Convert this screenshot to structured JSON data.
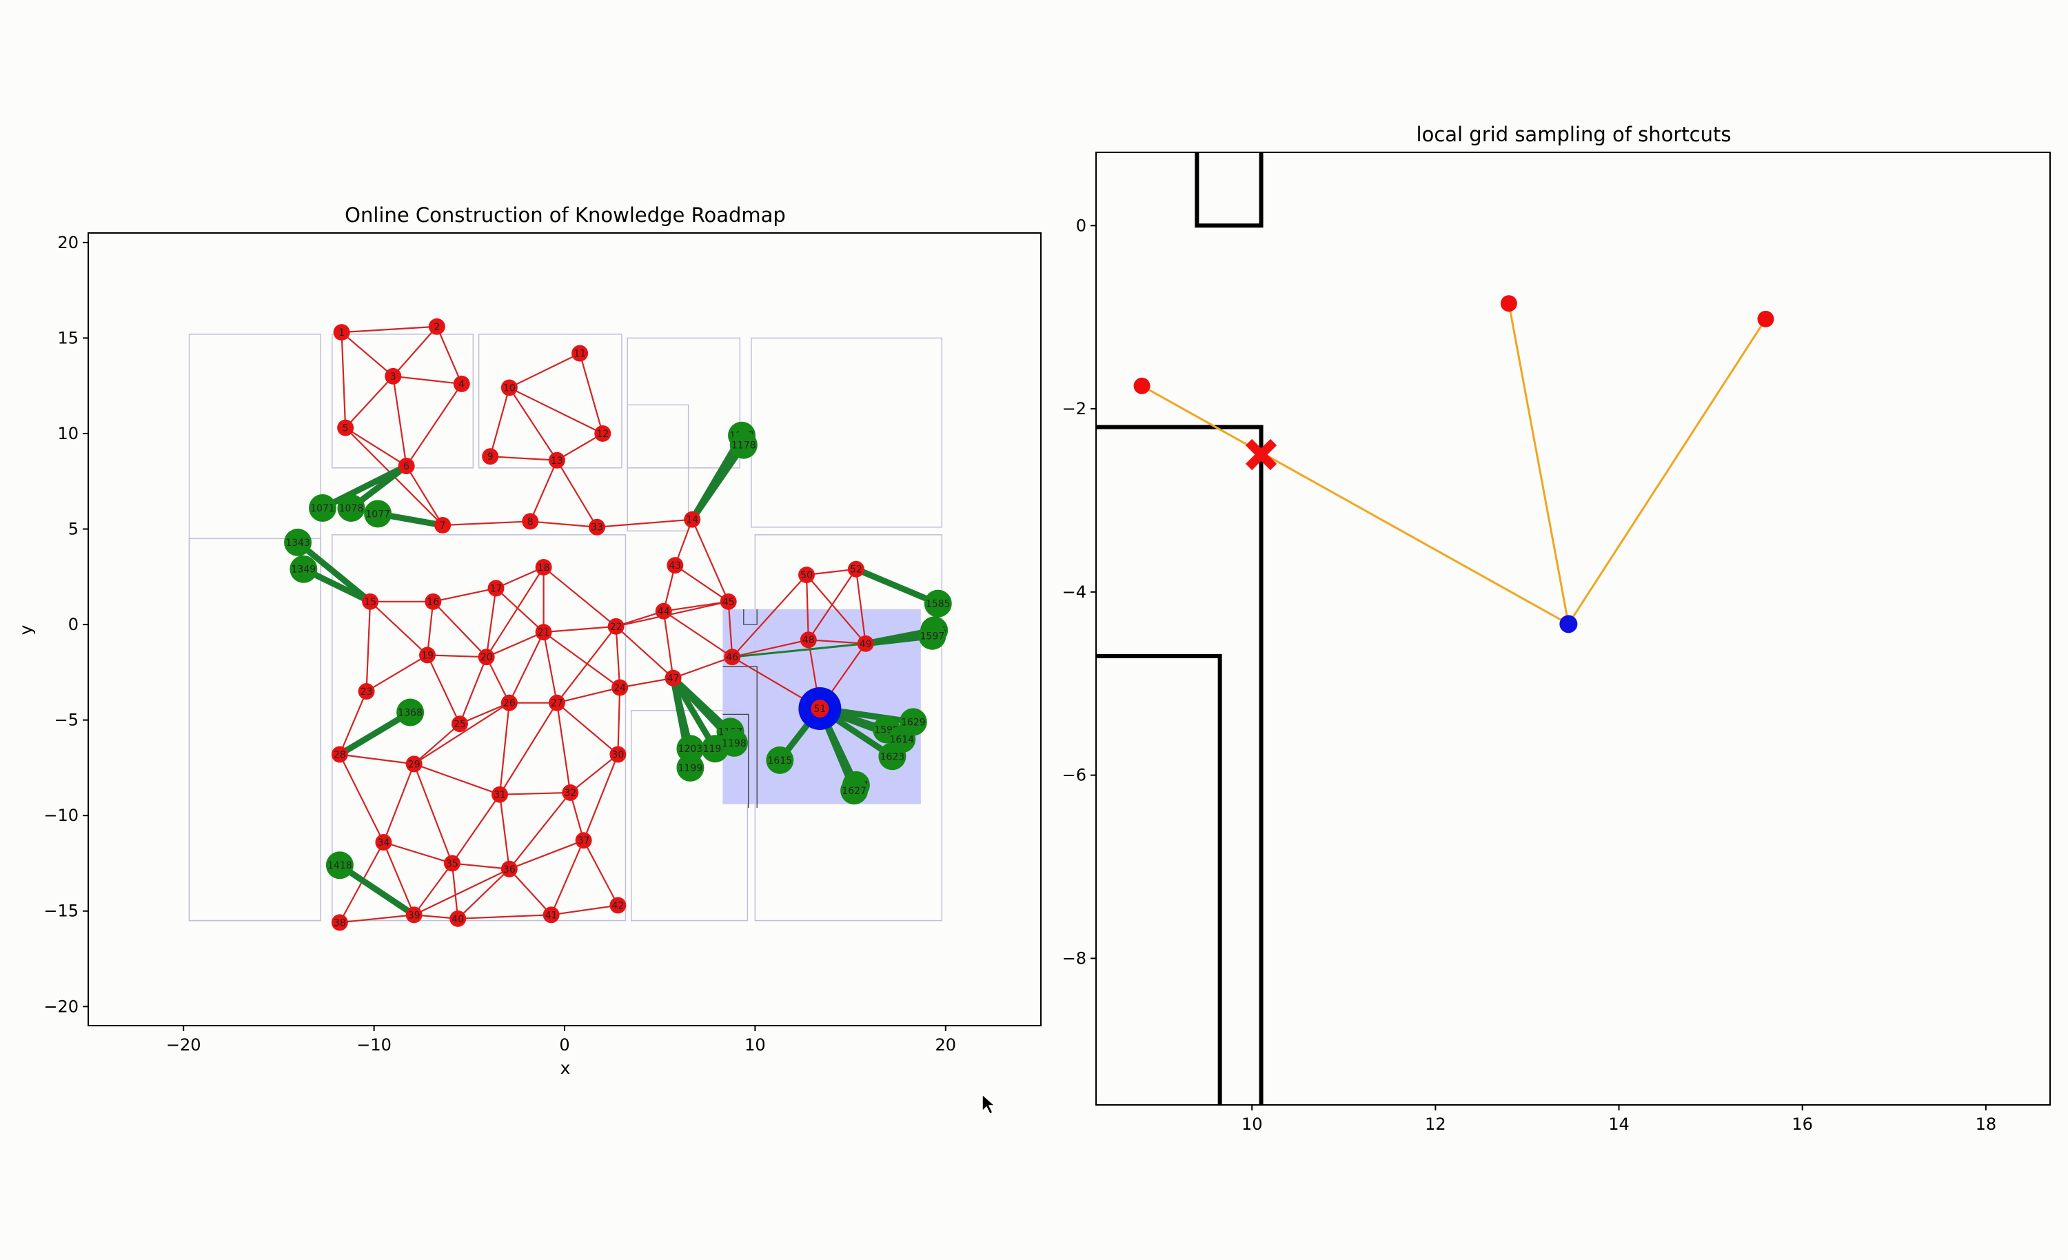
{
  "chart_data": [
    {
      "type": "scatter",
      "title": "Online Construction of Knowledge Roadmap",
      "xlabel": "x",
      "ylabel": "y",
      "xlim": [
        -25,
        25
      ],
      "ylim": [
        -21,
        20.5
      ],
      "xticks": [
        -20,
        -10,
        0,
        10,
        20
      ],
      "yticks": [
        -20,
        -15,
        -10,
        -5,
        0,
        5,
        10,
        15,
        20
      ],
      "sample_region": {
        "x": [
          8.3,
          18.7
        ],
        "y": [
          -9.4,
          0.8
        ],
        "color": "#c6c8fa"
      },
      "robot": {
        "x": 13.4,
        "y": -4.4,
        "label": "51",
        "color": "#0010e8"
      },
      "colors": {
        "node": "#e51414",
        "edge": "#d22424",
        "shortcut_node": "#168a16",
        "shortcut_edge": "#1d7d2f",
        "robot": "#0010e8"
      },
      "nodes": [
        {
          "id": "1",
          "x": -11.7,
          "y": 15.3
        },
        {
          "id": "2",
          "x": -6.7,
          "y": 15.6
        },
        {
          "id": "3",
          "x": -9.0,
          "y": 13.0
        },
        {
          "id": "4",
          "x": -5.4,
          "y": 12.6
        },
        {
          "id": "5",
          "x": -11.5,
          "y": 10.3
        },
        {
          "id": "6",
          "x": -8.3,
          "y": 8.3
        },
        {
          "id": "7",
          "x": -6.4,
          "y": 5.2
        },
        {
          "id": "8",
          "x": -1.8,
          "y": 5.4
        },
        {
          "id": "9",
          "x": -3.9,
          "y": 8.8
        },
        {
          "id": "10",
          "x": -2.9,
          "y": 12.4
        },
        {
          "id": "11",
          "x": 0.8,
          "y": 14.2
        },
        {
          "id": "12",
          "x": 2.0,
          "y": 10.0
        },
        {
          "id": "13",
          "x": -0.4,
          "y": 8.6
        },
        {
          "id": "33",
          "x": 1.7,
          "y": 5.1
        },
        {
          "id": "14",
          "x": 6.7,
          "y": 5.5
        },
        {
          "id": "15",
          "x": -10.2,
          "y": 1.2
        },
        {
          "id": "16",
          "x": -6.9,
          "y": 1.2
        },
        {
          "id": "17",
          "x": -3.6,
          "y": 1.9
        },
        {
          "id": "18",
          "x": -1.1,
          "y": 3.0
        },
        {
          "id": "19",
          "x": -7.2,
          "y": -1.6
        },
        {
          "id": "20",
          "x": -4.1,
          "y": -1.7
        },
        {
          "id": "21",
          "x": -1.1,
          "y": -0.4
        },
        {
          "id": "22",
          "x": 2.7,
          "y": -0.1
        },
        {
          "id": "23",
          "x": -10.4,
          "y": -3.5
        },
        {
          "id": "24",
          "x": 2.9,
          "y": -3.3
        },
        {
          "id": "25",
          "x": -5.5,
          "y": -5.2
        },
        {
          "id": "26",
          "x": -2.9,
          "y": -4.1
        },
        {
          "id": "27",
          "x": -0.4,
          "y": -4.1
        },
        {
          "id": "28",
          "x": -11.8,
          "y": -6.8
        },
        {
          "id": "29",
          "x": -7.9,
          "y": -7.3
        },
        {
          "id": "30",
          "x": 2.8,
          "y": -6.8
        },
        {
          "id": "31",
          "x": -3.4,
          "y": -8.9
        },
        {
          "id": "32",
          "x": 0.3,
          "y": -8.8
        },
        {
          "id": "34",
          "x": -9.5,
          "y": -11.4
        },
        {
          "id": "35",
          "x": -5.9,
          "y": -12.5
        },
        {
          "id": "36",
          "x": -2.9,
          "y": -12.8
        },
        {
          "id": "37",
          "x": 1.0,
          "y": -11.3
        },
        {
          "id": "38",
          "x": -11.8,
          "y": -15.6
        },
        {
          "id": "39",
          "x": -7.9,
          "y": -15.2
        },
        {
          "id": "40",
          "x": -5.6,
          "y": -15.4
        },
        {
          "id": "41",
          "x": -0.7,
          "y": -15.2
        },
        {
          "id": "42",
          "x": 2.8,
          "y": -14.7
        },
        {
          "id": "43",
          "x": 5.8,
          "y": 3.1
        },
        {
          "id": "44",
          "x": 5.2,
          "y": 0.7
        },
        {
          "id": "45",
          "x": 8.6,
          "y": 1.2
        },
        {
          "id": "46",
          "x": 8.8,
          "y": -1.7
        },
        {
          "id": "47",
          "x": 5.7,
          "y": -2.8
        },
        {
          "id": "48",
          "x": 12.8,
          "y": -0.8
        },
        {
          "id": "49",
          "x": 15.8,
          "y": -1.0
        },
        {
          "id": "50",
          "x": 12.7,
          "y": 2.6
        },
        {
          "id": "52",
          "x": 15.3,
          "y": 2.9
        }
      ],
      "edges": [
        [
          "1",
          "2"
        ],
        [
          "1",
          "3"
        ],
        [
          "1",
          "5"
        ],
        [
          "2",
          "3"
        ],
        [
          "2",
          "4"
        ],
        [
          "3",
          "4"
        ],
        [
          "3",
          "6"
        ],
        [
          "5",
          "6"
        ],
        [
          "5",
          "3"
        ],
        [
          "6",
          "7"
        ],
        [
          "6",
          "4"
        ],
        [
          "5",
          "7"
        ],
        [
          "9",
          "10"
        ],
        [
          "10",
          "11"
        ],
        [
          "10",
          "12"
        ],
        [
          "11",
          "12"
        ],
        [
          "10",
          "13"
        ],
        [
          "9",
          "13"
        ],
        [
          "12",
          "13"
        ],
        [
          "13",
          "8"
        ],
        [
          "13",
          "33"
        ],
        [
          "7",
          "8"
        ],
        [
          "8",
          "33"
        ],
        [
          "33",
          "14"
        ],
        [
          "14",
          "43"
        ],
        [
          "14",
          "45"
        ],
        [
          "43",
          "44"
        ],
        [
          "43",
          "45"
        ],
        [
          "44",
          "45"
        ],
        [
          "44",
          "46"
        ],
        [
          "45",
          "46"
        ],
        [
          "44",
          "22"
        ],
        [
          "45",
          "22"
        ],
        [
          "44",
          "47"
        ],
        [
          "47",
          "46"
        ],
        [
          "46",
          "48"
        ],
        [
          "46",
          "49"
        ],
        [
          "46",
          "50"
        ],
        [
          "48",
          "49"
        ],
        [
          "48",
          "50"
        ],
        [
          "50",
          "52"
        ],
        [
          "52",
          "49"
        ],
        [
          "50",
          "49"
        ],
        [
          "48",
          "52"
        ],
        [
          "15",
          "16"
        ],
        [
          "16",
          "17"
        ],
        [
          "17",
          "18"
        ],
        [
          "15",
          "19"
        ],
        [
          "16",
          "19"
        ],
        [
          "16",
          "20"
        ],
        [
          "17",
          "20"
        ],
        [
          "18",
          "21"
        ],
        [
          "17",
          "21"
        ],
        [
          "18",
          "22"
        ],
        [
          "21",
          "22"
        ],
        [
          "19",
          "20"
        ],
        [
          "20",
          "21"
        ],
        [
          "15",
          "23"
        ],
        [
          "19",
          "23"
        ],
        [
          "19",
          "25"
        ],
        [
          "20",
          "25"
        ],
        [
          "20",
          "26"
        ],
        [
          "21",
          "26"
        ],
        [
          "21",
          "27"
        ],
        [
          "22",
          "27"
        ],
        [
          "22",
          "24"
        ],
        [
          "24",
          "27"
        ],
        [
          "24",
          "30"
        ],
        [
          "27",
          "30"
        ],
        [
          "18",
          "20"
        ],
        [
          "22",
          "47"
        ],
        [
          "23",
          "28"
        ],
        [
          "28",
          "29"
        ],
        [
          "25",
          "29"
        ],
        [
          "26",
          "29"
        ],
        [
          "25",
          "26"
        ],
        [
          "26",
          "27"
        ],
        [
          "26",
          "31"
        ],
        [
          "27",
          "31"
        ],
        [
          "27",
          "32"
        ],
        [
          "32",
          "30"
        ],
        [
          "31",
          "32"
        ],
        [
          "29",
          "31"
        ],
        [
          "28",
          "34"
        ],
        [
          "29",
          "34"
        ],
        [
          "29",
          "35"
        ],
        [
          "31",
          "35"
        ],
        [
          "31",
          "36"
        ],
        [
          "32",
          "36"
        ],
        [
          "32",
          "37"
        ],
        [
          "30",
          "37"
        ],
        [
          "34",
          "35"
        ],
        [
          "35",
          "36"
        ],
        [
          "36",
          "37"
        ],
        [
          "34",
          "38"
        ],
        [
          "34",
          "39"
        ],
        [
          "35",
          "39"
        ],
        [
          "35",
          "40"
        ],
        [
          "36",
          "40"
        ],
        [
          "36",
          "41"
        ],
        [
          "37",
          "41"
        ],
        [
          "37",
          "42"
        ],
        [
          "38",
          "39"
        ],
        [
          "39",
          "40"
        ],
        [
          "40",
          "41"
        ],
        [
          "41",
          "42"
        ],
        [
          "39",
          "36"
        ],
        [
          "21",
          "24"
        ],
        [
          "47",
          "24"
        ]
      ],
      "shortcut_nodes": [
        {
          "id": "1177",
          "x": 9.3,
          "y": 9.9,
          "anchor": "14"
        },
        {
          "id": "1178",
          "x": 9.4,
          "y": 9.4,
          "anchor": "14"
        },
        {
          "id": "1071",
          "x": -12.7,
          "y": 6.1,
          "anchor": "6"
        },
        {
          "id": "1078",
          "x": -11.2,
          "y": 6.1,
          "anchor": "6"
        },
        {
          "id": "1077",
          "x": -9.8,
          "y": 5.8,
          "anchor": "7"
        },
        {
          "id": "1343",
          "x": -14.0,
          "y": 4.3,
          "anchor": "15"
        },
        {
          "id": "1349",
          "x": -13.7,
          "y": 2.9,
          "anchor": "15"
        },
        {
          "id": "1368",
          "x": -8.1,
          "y": -4.6,
          "anchor": "28"
        },
        {
          "id": "1418",
          "x": -11.8,
          "y": -12.6,
          "anchor": "39"
        },
        {
          "id": "1203",
          "x": 6.6,
          "y": -6.5,
          "anchor": "47"
        },
        {
          "id": "1194",
          "x": 7.9,
          "y": -6.5,
          "anchor": "47"
        },
        {
          "id": "1197",
          "x": 8.7,
          "y": -5.6,
          "anchor": "47"
        },
        {
          "id": "1198",
          "x": 8.9,
          "y": -6.2,
          "anchor": "47"
        },
        {
          "id": "1199",
          "x": 6.6,
          "y": -7.5,
          "anchor": "47"
        },
        {
          "id": "1585",
          "x": 19.6,
          "y": 1.1,
          "anchor": "52"
        },
        {
          "id": "1596",
          "x": 19.4,
          "y": -0.3,
          "anchor": "49"
        },
        {
          "id": "1597",
          "x": 19.3,
          "y": -0.6,
          "anchor": "49"
        },
        {
          "id": "1629",
          "x": 18.3,
          "y": -5.1,
          "anchor": "robot"
        },
        {
          "id": "1595",
          "x": 16.9,
          "y": -5.5,
          "anchor": "robot"
        },
        {
          "id": "1614",
          "x": 17.7,
          "y": -6.0,
          "anchor": "robot"
        },
        {
          "id": "1623",
          "x": 17.2,
          "y": -6.9,
          "anchor": "robot"
        },
        {
          "id": "1617",
          "x": 15.3,
          "y": -8.4,
          "anchor": "robot"
        },
        {
          "id": "1627",
          "x": 15.2,
          "y": -8.7,
          "anchor": "robot"
        },
        {
          "id": "1615",
          "x": 11.3,
          "y": -7.1,
          "anchor": "robot"
        }
      ],
      "shortcut_links": [
        [
          "46",
          "49"
        ]
      ]
    },
    {
      "type": "scatter",
      "title": "local grid sampling of shortcuts",
      "xlim": [
        8.3,
        18.7
      ],
      "ylim": [
        -9.6,
        0.8
      ],
      "xticks": [
        10,
        12,
        14,
        16,
        18
      ],
      "yticks": [
        0,
        -2,
        -4,
        -6,
        -8
      ],
      "colors": {
        "sample": "#ee0c0c",
        "robot": "#1010e0",
        "edge": "#f0a620",
        "blocked": "#f01010",
        "wall": "#000000"
      },
      "robot": {
        "x": 13.45,
        "y": -4.35
      },
      "samples": [
        {
          "x": 8.8,
          "y": -1.75
        },
        {
          "x": 12.8,
          "y": -0.85
        },
        {
          "x": 15.6,
          "y": -1.02
        }
      ],
      "blocked_point": {
        "x": 10.1,
        "y": -2.5
      },
      "walls": [
        [
          [
            9.4,
            0.8
          ],
          [
            9.4,
            0.0
          ],
          [
            10.1,
            0.0
          ],
          [
            10.1,
            0.8
          ]
        ],
        [
          [
            8.3,
            -2.2
          ],
          [
            10.1,
            -2.2
          ],
          [
            10.1,
            -9.6
          ]
        ],
        [
          [
            8.3,
            -4.7
          ],
          [
            9.65,
            -4.7
          ],
          [
            9.65,
            -9.6
          ]
        ]
      ]
    }
  ]
}
